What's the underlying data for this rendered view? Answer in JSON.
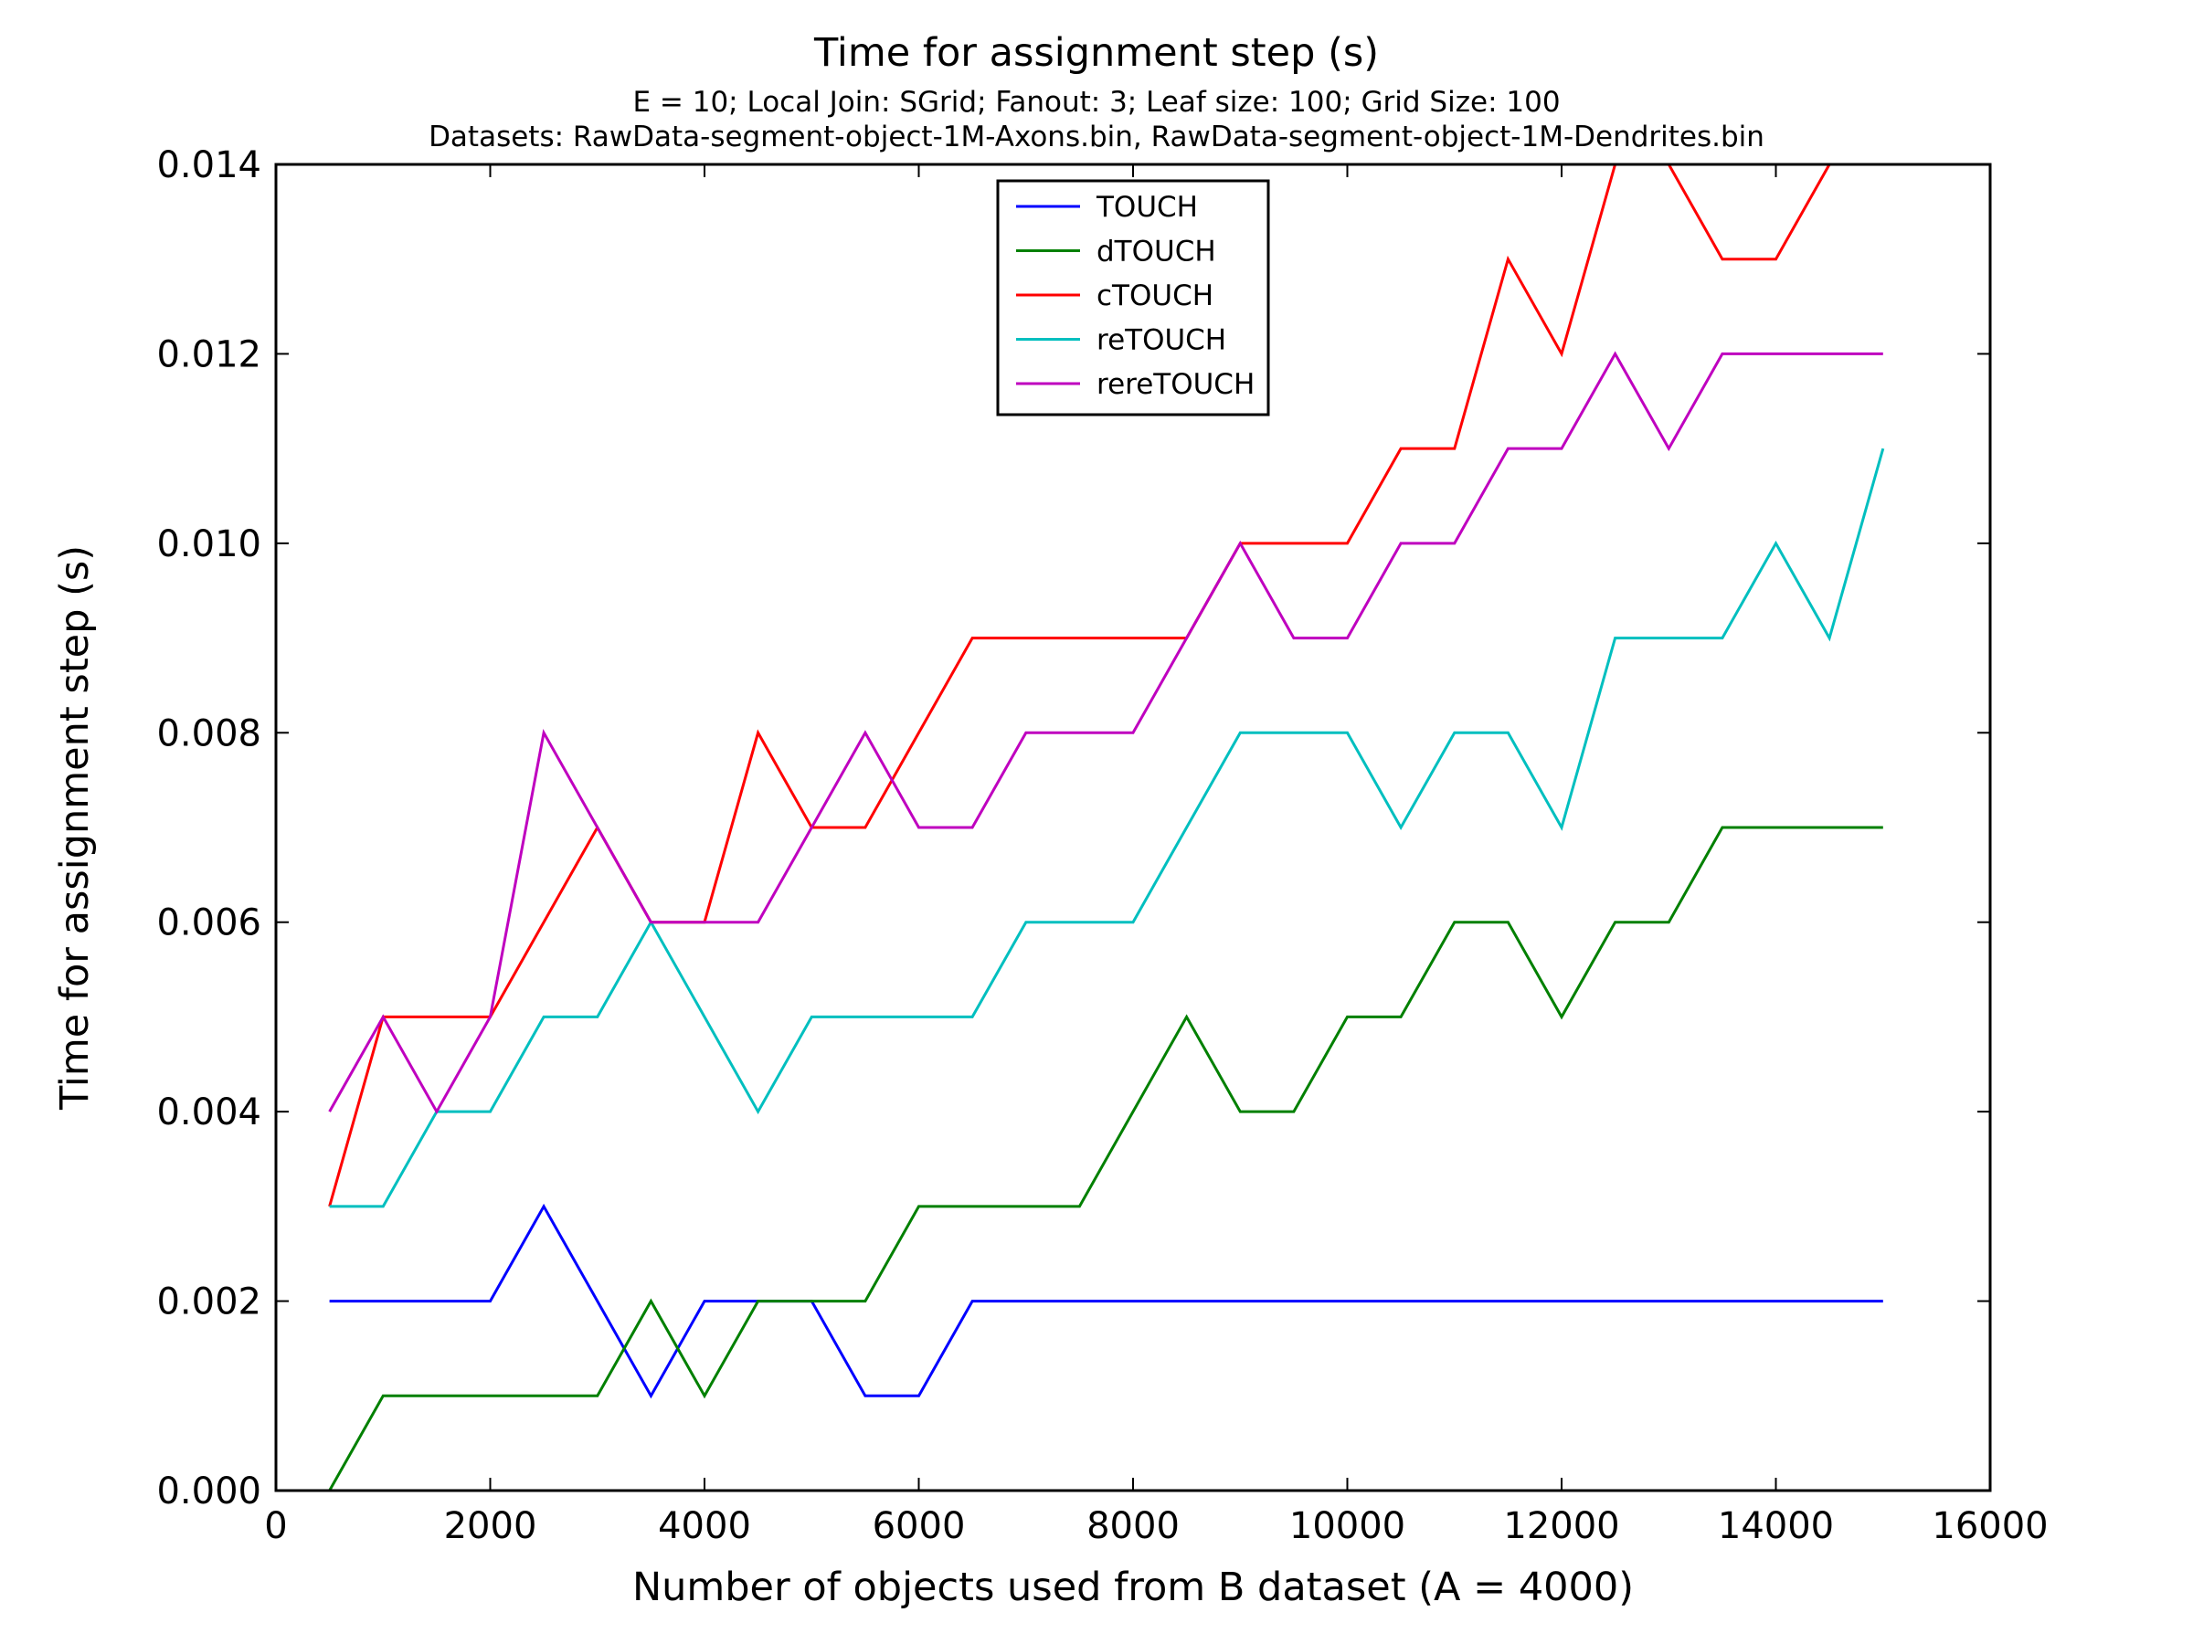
{
  "chart_data": {
    "type": "line",
    "title": "Time for assignment step (s)",
    "subtitle_lines": [
      "E = 10; Local Join: SGrid; Fanout: 3; Leaf size: 100; Grid Size: 100",
      "Datasets: RawData-segment-object-1M-Axons.bin, RawData-segment-object-1M-Dendrites.bin"
    ],
    "xlabel": "Number of objects used from B dataset (A = 4000)",
    "ylabel": "Time for assignment step (s)",
    "xlim": [
      0,
      16000
    ],
    "ylim": [
      0,
      0.014
    ],
    "xticks": [
      0,
      2000,
      4000,
      6000,
      8000,
      10000,
      12000,
      14000,
      16000
    ],
    "xtick_labels": [
      "0",
      "2000",
      "4000",
      "6000",
      "8000",
      "10000",
      "12000",
      "14000",
      "16000"
    ],
    "yticks": [
      0,
      0.002,
      0.004,
      0.006,
      0.008,
      0.01,
      0.012,
      0.014
    ],
    "ytick_labels": [
      "0.000",
      "0.002",
      "0.004",
      "0.006",
      "0.008",
      "0.010",
      "0.012",
      "0.014"
    ],
    "grid": false,
    "legend_position": "top-center",
    "x": [
      500,
      1000,
      1500,
      2000,
      2500,
      3000,
      3500,
      4000,
      4500,
      5000,
      5500,
      6000,
      6500,
      7000,
      7500,
      8000,
      8500,
      9000,
      9500,
      10000,
      10500,
      11000,
      11500,
      12000,
      12500,
      13000,
      13500,
      14000,
      14500,
      15000
    ],
    "series": [
      {
        "name": "TOUCH",
        "color": "#0000ff",
        "values": [
          0.002,
          0.002,
          0.002,
          0.002,
          0.003,
          0.002,
          0.001,
          0.002,
          0.002,
          0.002,
          0.001,
          0.001,
          0.002,
          0.002,
          0.002,
          0.002,
          0.002,
          0.002,
          0.002,
          0.002,
          0.002,
          0.002,
          0.002,
          0.002,
          0.002,
          0.002,
          0.002,
          0.002,
          0.002,
          0.002
        ]
      },
      {
        "name": "dTOUCH",
        "color": "#008000",
        "values": [
          0.0,
          0.001,
          0.001,
          0.001,
          0.001,
          0.001,
          0.002,
          0.001,
          0.002,
          0.002,
          0.002,
          0.003,
          0.003,
          0.003,
          0.003,
          0.004,
          0.005,
          0.004,
          0.004,
          0.005,
          0.005,
          0.006,
          0.006,
          0.005,
          0.006,
          0.006,
          0.007,
          0.007,
          0.007,
          0.007
        ]
      },
      {
        "name": "cTOUCH",
        "color": "#ff0000",
        "values": [
          0.003,
          0.005,
          0.005,
          0.005,
          0.006,
          0.007,
          0.006,
          0.006,
          0.008,
          0.007,
          0.007,
          0.008,
          0.009,
          0.009,
          0.009,
          0.009,
          0.009,
          0.01,
          0.01,
          0.01,
          0.011,
          0.011,
          0.013,
          0.012,
          0.014,
          0.014,
          0.013,
          0.013,
          0.014,
          0.014
        ]
      },
      {
        "name": "reTOUCH",
        "color": "#00bfbf",
        "values": [
          0.003,
          0.003,
          0.004,
          0.004,
          0.005,
          0.005,
          0.006,
          0.005,
          0.004,
          0.005,
          0.005,
          0.005,
          0.005,
          0.006,
          0.006,
          0.006,
          0.007,
          0.008,
          0.008,
          0.008,
          0.007,
          0.008,
          0.008,
          0.007,
          0.009,
          0.009,
          0.009,
          0.01,
          0.009,
          0.011
        ]
      },
      {
        "name": "rereTOUCH",
        "color": "#bf00bf",
        "values": [
          0.004,
          0.005,
          0.004,
          0.005,
          0.008,
          0.007,
          0.006,
          0.006,
          0.006,
          0.007,
          0.008,
          0.007,
          0.007,
          0.008,
          0.008,
          0.008,
          0.009,
          0.01,
          0.009,
          0.009,
          0.01,
          0.01,
          0.011,
          0.011,
          0.012,
          0.011,
          0.012,
          0.012,
          0.012,
          0.012
        ]
      }
    ]
  }
}
